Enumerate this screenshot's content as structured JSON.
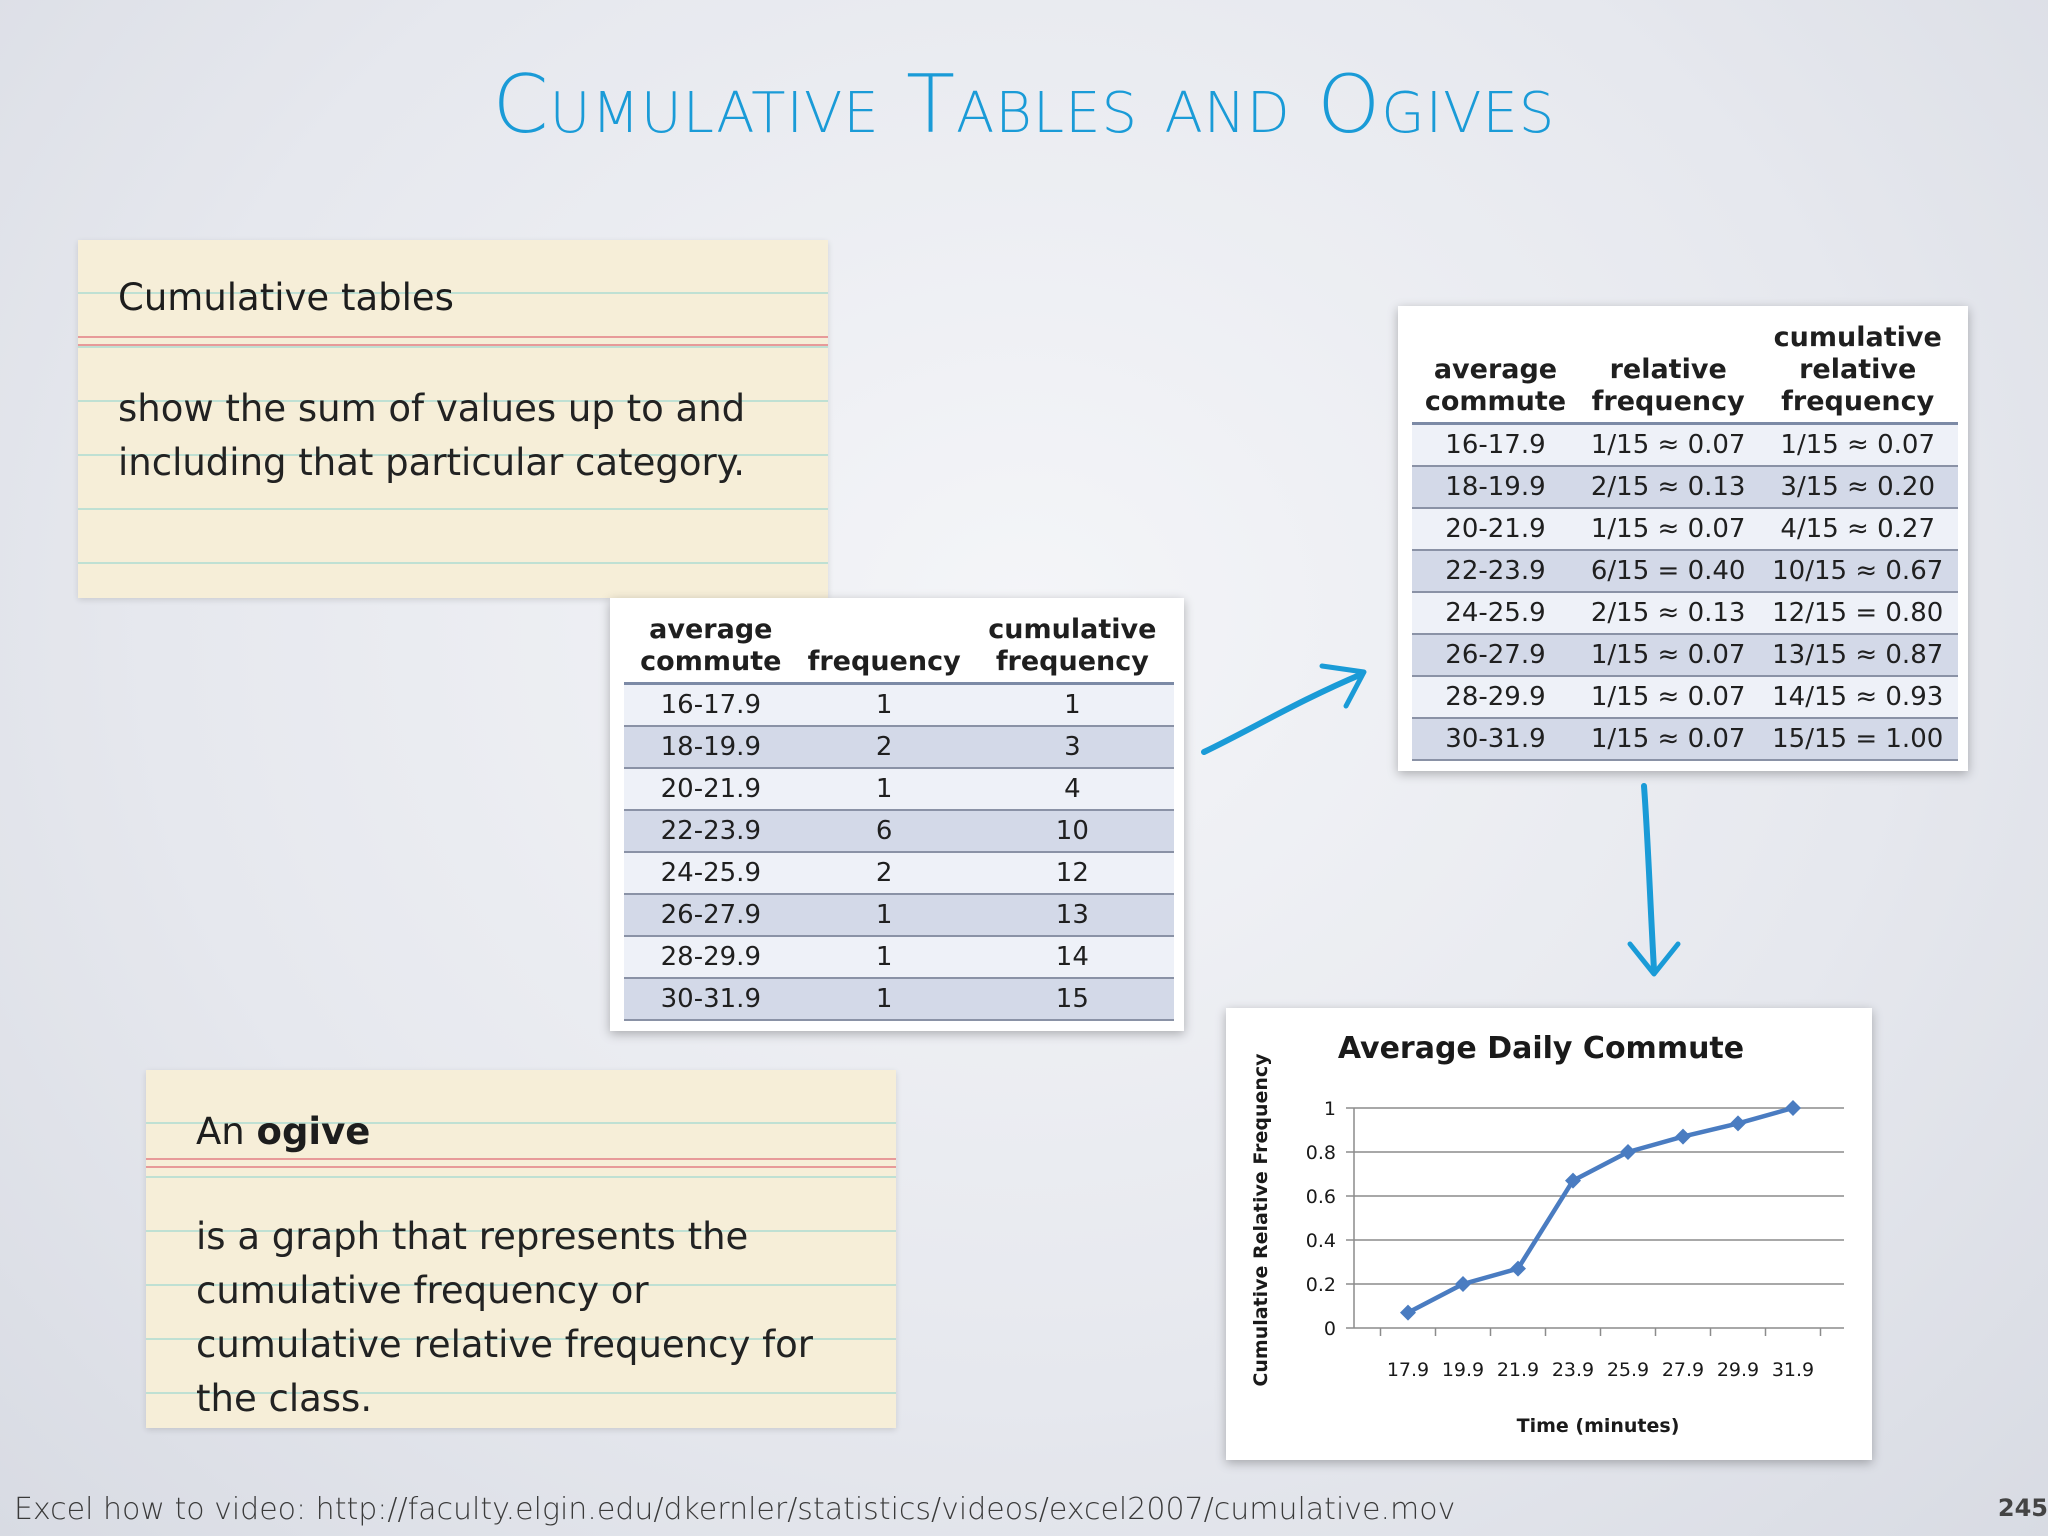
{
  "title": "Cumulative Tables and Ogives",
  "card_cumulative": {
    "heading": "Cumulative tables",
    "body": "show the sum of values up to and including that particular category."
  },
  "card_ogive": {
    "heading_prefix": "An ",
    "heading_bold": "ogive",
    "body": "is a graph that represents the cumulative frequency or cumulative relative frequency for the class."
  },
  "freq_table": {
    "headers": [
      "average commute",
      "frequency",
      "cumulative frequency"
    ],
    "rows": [
      [
        "16-17.9",
        "1",
        "1"
      ],
      [
        "18-19.9",
        "2",
        "3"
      ],
      [
        "20-21.9",
        "1",
        "4"
      ],
      [
        "22-23.9",
        "6",
        "10"
      ],
      [
        "24-25.9",
        "2",
        "12"
      ],
      [
        "26-27.9",
        "1",
        "13"
      ],
      [
        "28-29.9",
        "1",
        "14"
      ],
      [
        "30-31.9",
        "1",
        "15"
      ]
    ]
  },
  "rel_table": {
    "headers": [
      "average commute",
      "relative frequency",
      "cumulative relative frequency"
    ],
    "rows": [
      [
        "16-17.9",
        "1/15 ≈ 0.07",
        "1/15 ≈ 0.07"
      ],
      [
        "18-19.9",
        "2/15 ≈ 0.13",
        "3/15 ≈ 0.20"
      ],
      [
        "20-21.9",
        "1/15 ≈ 0.07",
        "4/15 ≈ 0.27"
      ],
      [
        "22-23.9",
        "6/15 = 0.40",
        "10/15 ≈ 0.67"
      ],
      [
        "24-25.9",
        "2/15 ≈ 0.13",
        "12/15 = 0.80"
      ],
      [
        "26-27.9",
        "1/15 ≈ 0.07",
        "13/15 ≈ 0.87"
      ],
      [
        "28-29.9",
        "1/15 ≈ 0.07",
        "14/15 ≈ 0.93"
      ],
      [
        "30-31.9",
        "1/15 ≈ 0.07",
        "15/15 = 1.00"
      ]
    ]
  },
  "chart_data": {
    "type": "line",
    "title": "Average Daily Commute",
    "xlabel": "Time (minutes)",
    "ylabel": "Cumulative Relative Frequency",
    "categories": [
      "17.9",
      "19.9",
      "21.9",
      "23.9",
      "25.9",
      "27.9",
      "29.9",
      "31.9"
    ],
    "values": [
      0.07,
      0.2,
      0.27,
      0.67,
      0.8,
      0.87,
      0.93,
      1.0
    ],
    "yticks": [
      "0",
      "0.2",
      "0.4",
      "0.6",
      "0.8",
      "1"
    ],
    "ylim": [
      0,
      1
    ],
    "grid": true,
    "marker": "diamond",
    "line_color": "#4a7cc1"
  },
  "footer": "Excel how to video: http://faculty.elgin.edu/dkernler/statistics/videos/excel2007/cumulative.mov",
  "page_number": "245",
  "accent_color": "#1a9bd7"
}
